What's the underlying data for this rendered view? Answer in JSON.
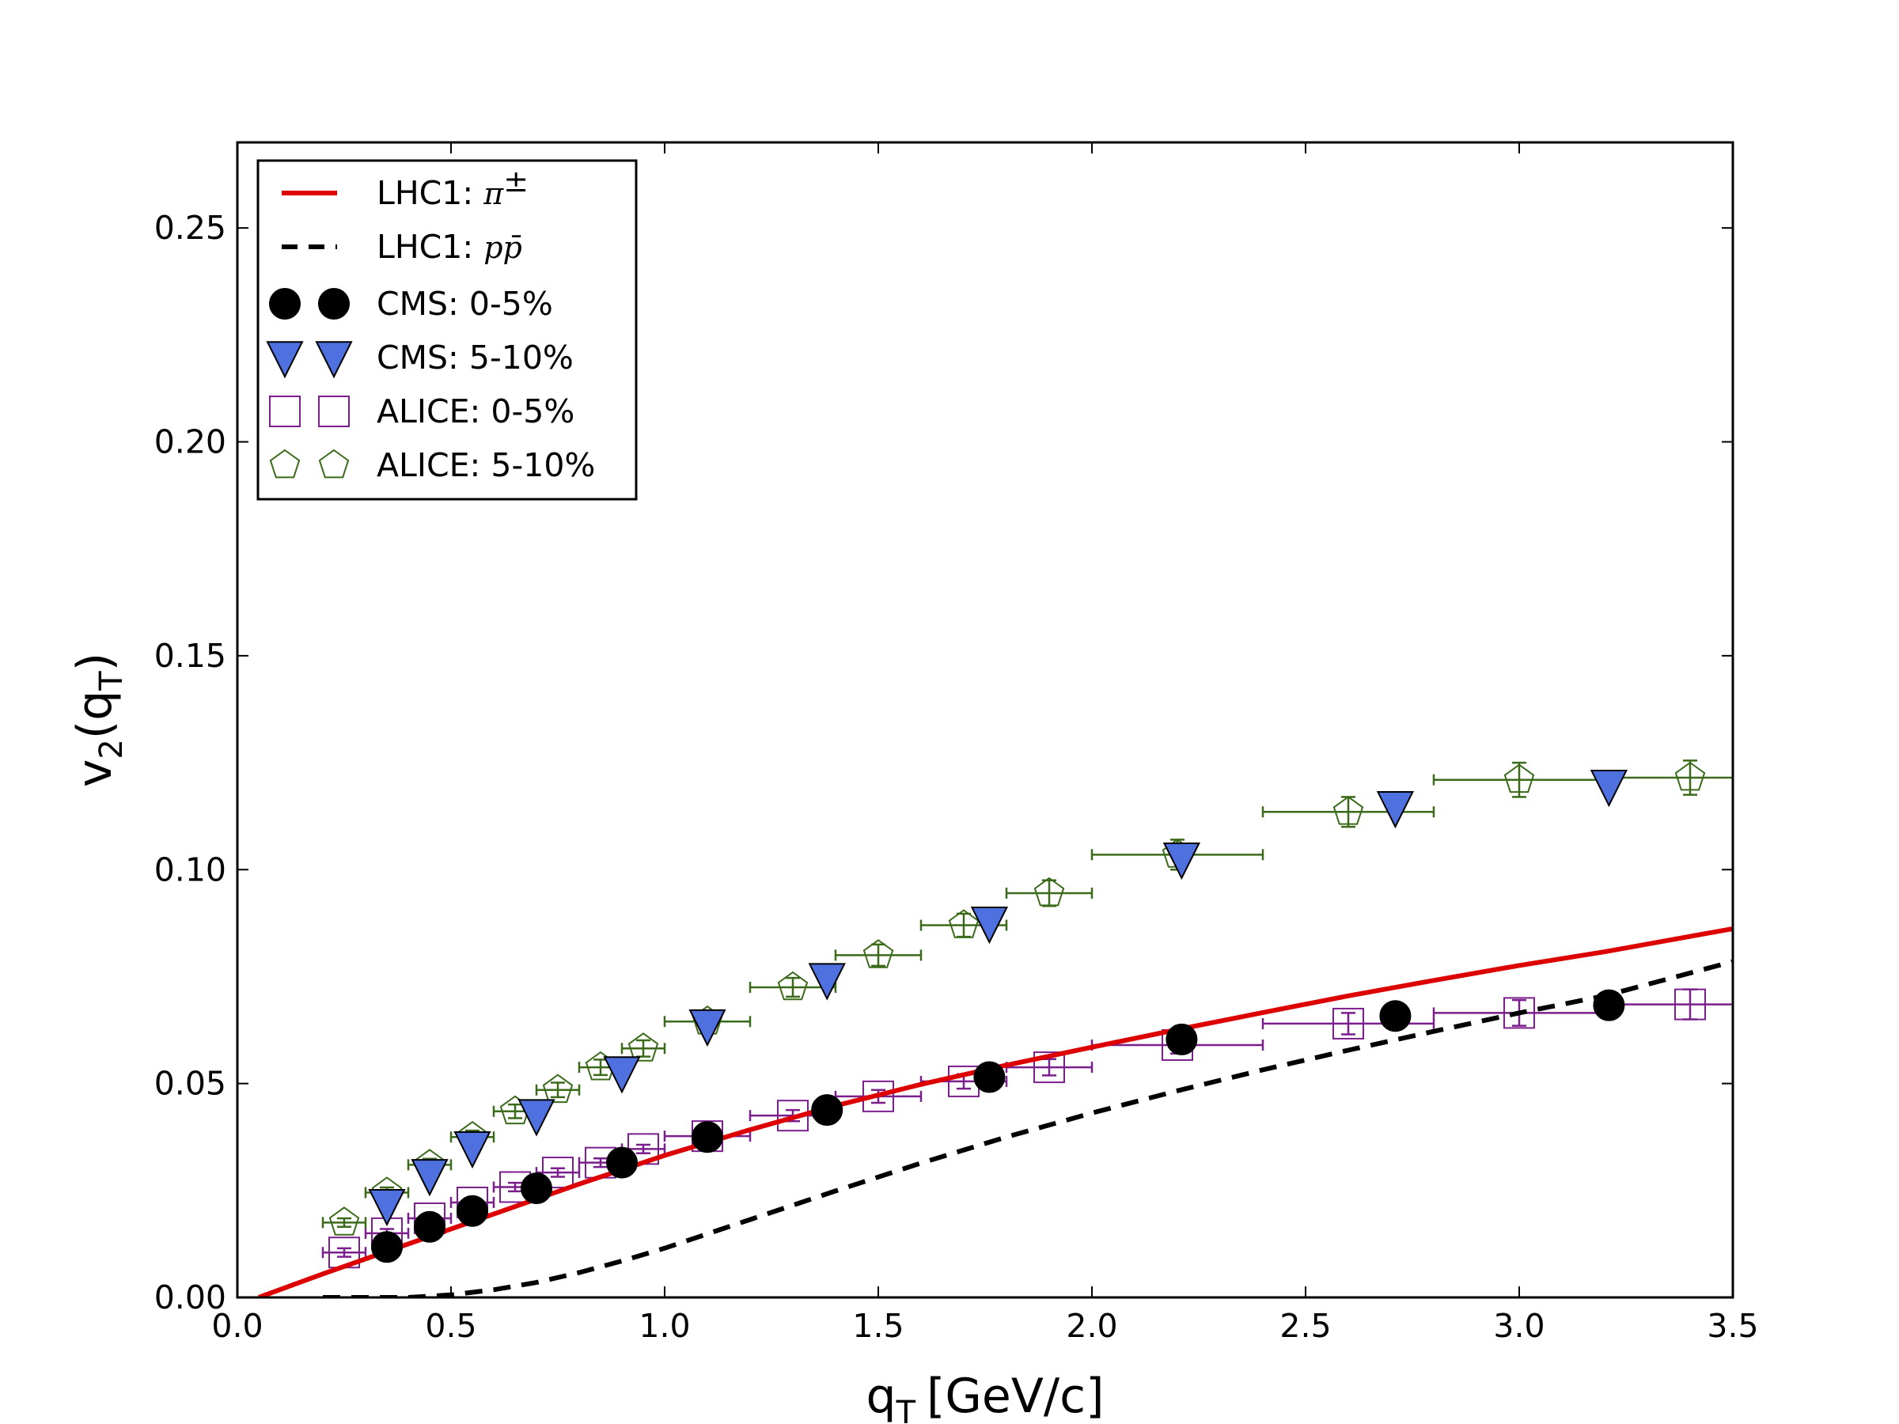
{
  "chart_data": {
    "type": "scatter",
    "xlabel": {
      "main": "q",
      "sub": "T",
      "unit": "[GeV/c]"
    },
    "ylabel": {
      "main": "v",
      "sub": "2",
      "arg_main": "q",
      "arg_sub": "T"
    },
    "xlim": [
      0.0,
      3.5
    ],
    "ylim": [
      0.0,
      0.27
    ],
    "xticks": [
      {
        "value": 0.0,
        "label": "0.0"
      },
      {
        "value": 0.5,
        "label": "0.5"
      },
      {
        "value": 1.0,
        "label": "1.0"
      },
      {
        "value": 1.5,
        "label": "1.5"
      },
      {
        "value": 2.0,
        "label": "2.0"
      },
      {
        "value": 2.5,
        "label": "2.5"
      },
      {
        "value": 3.0,
        "label": "3.0"
      },
      {
        "value": 3.5,
        "label": "3.5"
      }
    ],
    "yticks": [
      {
        "value": 0.0,
        "label": "0.00"
      },
      {
        "value": 0.05,
        "label": "0.05"
      },
      {
        "value": 0.1,
        "label": "0.10"
      },
      {
        "value": 0.15,
        "label": "0.15"
      },
      {
        "value": 0.2,
        "label": "0.20"
      },
      {
        "value": 0.25,
        "label": "0.25"
      }
    ],
    "colors": {
      "pion": "#dd0000",
      "proton": "#000000",
      "cms05": "#000000",
      "cms510": "#4f70df",
      "alice05": "#7b1f8c",
      "alice510": "#3b6b1a"
    },
    "legend": {
      "placement": "top-left",
      "entries": [
        {
          "key": "pion",
          "label": "LHC1: ",
          "math": "π",
          "math_sup": "±"
        },
        {
          "key": "proton",
          "label": "LHC1: ",
          "math": "pp̄",
          "math_sup": ""
        },
        {
          "key": "cms05",
          "label": "CMS: 0-5%",
          "math": "",
          "math_sup": ""
        },
        {
          "key": "cms510",
          "label": "CMS: 5-10%",
          "math": "",
          "math_sup": ""
        },
        {
          "key": "alice05",
          "label": "ALICE: 0-5%",
          "math": "",
          "math_sup": ""
        },
        {
          "key": "alice510",
          "label": "ALICE: 5-10%",
          "math": "",
          "math_sup": ""
        }
      ]
    },
    "series": [
      {
        "name": "LHC1: π±",
        "key": "pion",
        "kind": "line",
        "style": "solid",
        "x": [
          0.05,
          0.2,
          0.4,
          0.6,
          0.8,
          1.0,
          1.2,
          1.4,
          1.6,
          1.8,
          2.0,
          2.2,
          2.4,
          2.6,
          2.8,
          3.0,
          3.2,
          3.5
        ],
        "y": [
          0.0,
          0.0055,
          0.0125,
          0.0195,
          0.0265,
          0.0332,
          0.0392,
          0.0448,
          0.0498,
          0.0543,
          0.0585,
          0.0626,
          0.0666,
          0.0705,
          0.0741,
          0.0776,
          0.0808,
          0.0862
        ]
      },
      {
        "name": "LHC1: pp̄",
        "key": "proton",
        "kind": "line",
        "style": "dashed",
        "x": [
          0.2,
          0.4,
          0.5,
          0.6,
          0.7,
          0.8,
          0.9,
          1.0,
          1.2,
          1.4,
          1.6,
          1.8,
          2.0,
          2.2,
          2.4,
          2.6,
          2.8,
          3.0,
          3.2,
          3.5
        ],
        "y": [
          0.0,
          0.0,
          0.0006,
          0.0018,
          0.0035,
          0.0058,
          0.0085,
          0.0115,
          0.0182,
          0.0249,
          0.0314,
          0.0375,
          0.0431,
          0.0483,
          0.0532,
          0.0578,
          0.0622,
          0.0665,
          0.0705,
          0.0785
        ]
      },
      {
        "name": "CMS: 0-5%",
        "key": "cms05",
        "kind": "markers",
        "marker": "circle",
        "x": [
          0.35,
          0.45,
          0.55,
          0.7,
          0.9,
          1.1,
          1.38,
          1.76,
          2.21,
          2.71,
          3.21
        ],
        "y": [
          0.0118,
          0.0165,
          0.0202,
          0.0255,
          0.0315,
          0.0375,
          0.0438,
          0.0515,
          0.0603,
          0.0658,
          0.0683
        ],
        "xerr": [
          0,
          0,
          0,
          0,
          0,
          0,
          0,
          0,
          0,
          0,
          0
        ],
        "yerr": [
          0,
          0,
          0,
          0,
          0,
          0,
          0,
          0,
          0,
          0,
          0
        ]
      },
      {
        "name": "CMS: 5-10%",
        "key": "cms510",
        "kind": "markers",
        "marker": "triangle-down",
        "x": [
          0.35,
          0.45,
          0.55,
          0.7,
          0.9,
          1.1,
          1.38,
          1.76,
          2.21,
          2.71,
          3.21
        ],
        "y": [
          0.0215,
          0.0285,
          0.035,
          0.0425,
          0.0525,
          0.0635,
          0.0743,
          0.0875,
          0.1025,
          0.1145,
          0.1195
        ],
        "xerr": [
          0,
          0,
          0,
          0,
          0,
          0,
          0,
          0,
          0,
          0,
          0
        ],
        "yerr": [
          0,
          0,
          0,
          0,
          0,
          0,
          0,
          0,
          0,
          0,
          0
        ]
      },
      {
        "name": "ALICE: 0-5%",
        "key": "alice05",
        "kind": "markers",
        "marker": "square",
        "x": [
          0.25,
          0.35,
          0.45,
          0.55,
          0.65,
          0.75,
          0.85,
          0.95,
          1.1,
          1.3,
          1.5,
          1.7,
          1.9,
          2.2,
          2.6,
          3.0,
          3.4
        ],
        "y": [
          0.0105,
          0.015,
          0.0185,
          0.0222,
          0.0258,
          0.0292,
          0.0315,
          0.0347,
          0.0377,
          0.0425,
          0.047,
          0.0505,
          0.0538,
          0.059,
          0.064,
          0.0665,
          0.0685
        ],
        "xerr": [
          0.05,
          0.05,
          0.05,
          0.05,
          0.05,
          0.05,
          0.05,
          0.05,
          0.1,
          0.1,
          0.1,
          0.1,
          0.1,
          0.2,
          0.2,
          0.2,
          0.2
        ],
        "yerr": [
          0.001,
          0.001,
          0.001,
          0.001,
          0.001,
          0.001,
          0.001,
          0.001,
          0.0012,
          0.0013,
          0.0015,
          0.0017,
          0.0019,
          0.002,
          0.0025,
          0.003,
          0.0035
        ]
      },
      {
        "name": "ALICE: 5-10%",
        "key": "alice510",
        "kind": "markers",
        "marker": "pentagon",
        "x": [
          0.25,
          0.35,
          0.45,
          0.55,
          0.65,
          0.75,
          0.85,
          0.95,
          1.1,
          1.3,
          1.5,
          1.7,
          1.9,
          2.2,
          2.6,
          3.0,
          3.4
        ],
        "y": [
          0.0175,
          0.0245,
          0.031,
          0.0375,
          0.0435,
          0.0485,
          0.0538,
          0.0582,
          0.0645,
          0.0725,
          0.08,
          0.087,
          0.0945,
          0.1035,
          0.1135,
          0.121,
          0.1215
        ],
        "xerr": [
          0.05,
          0.05,
          0.05,
          0.05,
          0.05,
          0.05,
          0.05,
          0.05,
          0.1,
          0.1,
          0.1,
          0.1,
          0.1,
          0.2,
          0.2,
          0.2,
          0.2
        ],
        "yerr": [
          0.001,
          0.0012,
          0.0014,
          0.0015,
          0.0016,
          0.0017,
          0.0018,
          0.0019,
          0.002,
          0.0022,
          0.0025,
          0.0027,
          0.003,
          0.0035,
          0.0035,
          0.004,
          0.004
        ]
      }
    ]
  }
}
